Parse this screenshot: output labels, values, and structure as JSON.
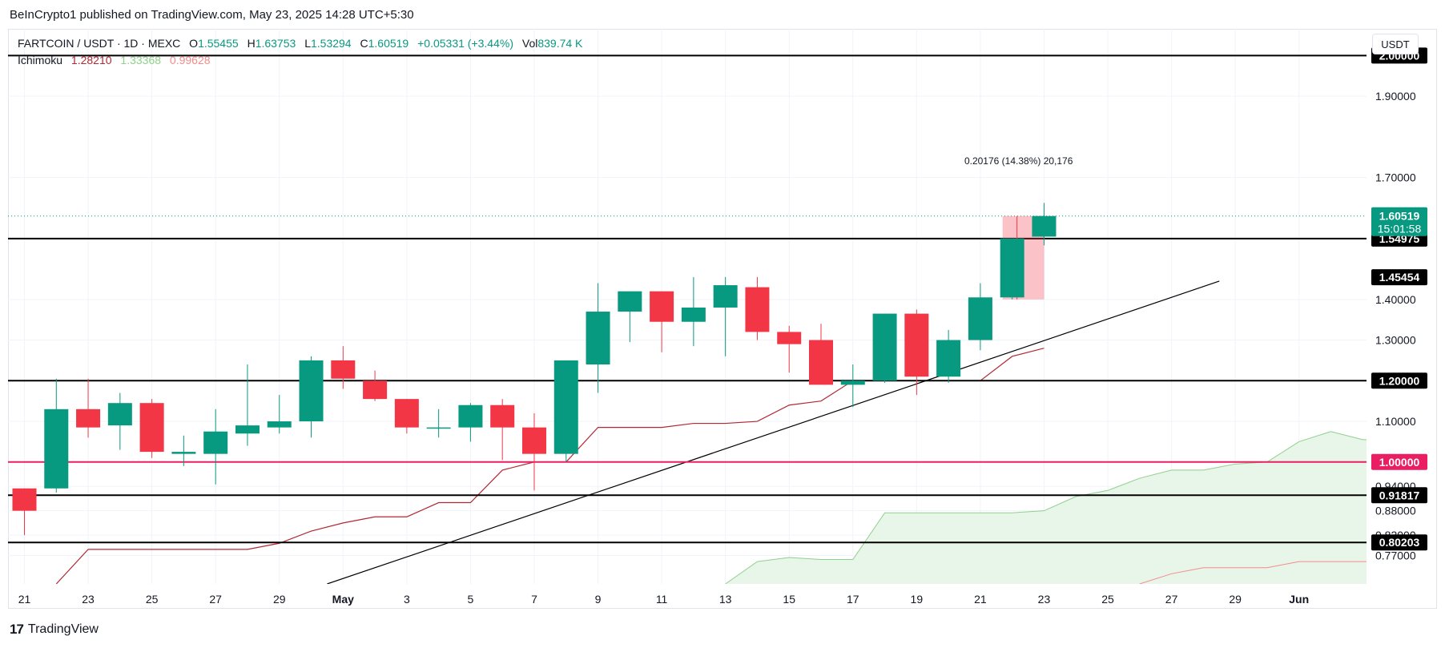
{
  "header": {
    "publish_line": "BeInCrypto1 published on TradingView.com, May 23, 2025 14:28 UTC+5:30"
  },
  "legend": {
    "symbol": "FARTCOIN / USDT · 1D · MEXC",
    "o_label": "O",
    "o_value": "1.55455",
    "h_label": "H",
    "h_value": "1.63753",
    "l_label": "L",
    "l_value": "1.53294",
    "c_label": "C",
    "c_value": "1.60519",
    "change": "+0.05331 (+3.44%)",
    "vol_label": "Vol",
    "vol_value": "839.74 K",
    "ichimoku_label": "Ichimoku",
    "ichimoku_values": [
      "1.28210",
      "1.33368",
      "0.99628"
    ]
  },
  "currency_button": "USDT",
  "footer": {
    "brand": "TradingView",
    "logo_glyph": "17"
  },
  "colors": {
    "up": "#089981",
    "down": "#f23645",
    "baseline_red": "#b22833",
    "cloud_fill": "#e8f5e9",
    "cloud_edge": "#8fd08c",
    "lagging_red": "#f28c8c",
    "pink_level": "#e91e63"
  },
  "chart_data": {
    "type": "candlestick",
    "y_range": [
      0.7,
      2.05
    ],
    "y_ticks": [
      "0.77000",
      "0.82000",
      "0.88000",
      "0.94000",
      "1.10000",
      "1.30000",
      "1.40000",
      "1.70000",
      "1.90000"
    ],
    "x_ticks": [
      "21",
      "23",
      "25",
      "27",
      "29",
      "May",
      "3",
      "5",
      "7",
      "9",
      "11",
      "13",
      "15",
      "17",
      "19",
      "21",
      "23",
      "25",
      "27",
      "29",
      "Jun"
    ],
    "candles": [
      {
        "o": 0.935,
        "h": 0.935,
        "l": 0.82,
        "c": 0.88
      },
      {
        "o": 0.935,
        "h": 1.205,
        "l": 0.925,
        "c": 1.13
      },
      {
        "o": 1.13,
        "h": 1.205,
        "l": 1.06,
        "c": 1.085
      },
      {
        "o": 1.09,
        "h": 1.17,
        "l": 1.03,
        "c": 1.145
      },
      {
        "o": 1.145,
        "h": 1.155,
        "l": 1.01,
        "c": 1.025
      },
      {
        "o": 1.02,
        "h": 1.065,
        "l": 0.99,
        "c": 1.025
      },
      {
        "o": 1.02,
        "h": 1.13,
        "l": 0.945,
        "c": 1.075
      },
      {
        "o": 1.07,
        "h": 1.24,
        "l": 1.04,
        "c": 1.09
      },
      {
        "o": 1.085,
        "h": 1.165,
        "l": 1.07,
        "c": 1.1
      },
      {
        "o": 1.1,
        "h": 1.26,
        "l": 1.06,
        "c": 1.25
      },
      {
        "o": 1.25,
        "h": 1.285,
        "l": 1.18,
        "c": 1.205
      },
      {
        "o": 1.2,
        "h": 1.225,
        "l": 1.15,
        "c": 1.155
      },
      {
        "o": 1.155,
        "h": 1.155,
        "l": 1.07,
        "c": 1.085
      },
      {
        "o": 1.085,
        "h": 1.13,
        "l": 1.06,
        "c": 1.085
      },
      {
        "o": 1.085,
        "h": 1.145,
        "l": 1.05,
        "c": 1.14
      },
      {
        "o": 1.14,
        "h": 1.155,
        "l": 1.005,
        "c": 1.085
      },
      {
        "o": 1.085,
        "h": 1.12,
        "l": 0.93,
        "c": 1.02
      },
      {
        "o": 1.02,
        "h": 1.25,
        "l": 1.0,
        "c": 1.25
      },
      {
        "o": 1.24,
        "h": 1.44,
        "l": 1.17,
        "c": 1.37
      },
      {
        "o": 1.37,
        "h": 1.415,
        "l": 1.295,
        "c": 1.42
      },
      {
        "o": 1.42,
        "h": 1.42,
        "l": 1.27,
        "c": 1.345
      },
      {
        "o": 1.345,
        "h": 1.455,
        "l": 1.285,
        "c": 1.38
      },
      {
        "o": 1.38,
        "h": 1.455,
        "l": 1.26,
        "c": 1.435
      },
      {
        "o": 1.43,
        "h": 1.455,
        "l": 1.3,
        "c": 1.32
      },
      {
        "o": 1.32,
        "h": 1.335,
        "l": 1.22,
        "c": 1.29
      },
      {
        "o": 1.3,
        "h": 1.34,
        "l": 1.2,
        "c": 1.19
      },
      {
        "o": 1.19,
        "h": 1.24,
        "l": 1.135,
        "c": 1.2
      },
      {
        "o": 1.2,
        "h": 1.365,
        "l": 1.195,
        "c": 1.365
      },
      {
        "o": 1.365,
        "h": 1.375,
        "l": 1.165,
        "c": 1.21
      },
      {
        "o": 1.21,
        "h": 1.325,
        "l": 1.195,
        "c": 1.3
      },
      {
        "o": 1.3,
        "h": 1.44,
        "l": 1.275,
        "c": 1.405
      },
      {
        "o": 1.405,
        "h": 1.54,
        "l": 1.4,
        "c": 1.55
      },
      {
        "o": 1.55455,
        "h": 1.63753,
        "l": 1.53294,
        "c": 1.60519
      }
    ],
    "levels": [
      {
        "value": 2.0,
        "label": "2.00000",
        "color": "#000000"
      },
      {
        "value": 1.54975,
        "label": "1.54975",
        "color": "#000000"
      },
      {
        "value": 1.45454,
        "label": "1.45454",
        "color": "#000000",
        "label_only": true
      },
      {
        "value": 1.2,
        "label": "1.20000",
        "color": "#000000"
      },
      {
        "value": 1.0,
        "label": "1.00000",
        "color": "#e91e63"
      },
      {
        "value": 0.91817,
        "label": "0.91817",
        "color": "#000000"
      },
      {
        "value": 0.80203,
        "label": "0.80203",
        "color": "#000000"
      }
    ],
    "last_price": "1.60519",
    "countdown": "15:01:58",
    "measure_label": "0.20176 (14.38%) 20,176",
    "baseline": [
      [
        1,
        0.7
      ],
      [
        2,
        0.785
      ],
      [
        3,
        0.785
      ],
      [
        4,
        0.785
      ],
      [
        5,
        0.785
      ],
      [
        6,
        0.785
      ],
      [
        7,
        0.785
      ],
      [
        8,
        0.8
      ],
      [
        9,
        0.83
      ],
      [
        10,
        0.85
      ],
      [
        11,
        0.865
      ],
      [
        12,
        0.865
      ],
      [
        13,
        0.9
      ],
      [
        14,
        0.9
      ],
      [
        15,
        0.98
      ],
      [
        16,
        1.0
      ],
      [
        17,
        1.0
      ],
      [
        18,
        1.085
      ],
      [
        19,
        1.085
      ],
      [
        20,
        1.085
      ],
      [
        21,
        1.095
      ],
      [
        22,
        1.095
      ],
      [
        23,
        1.1
      ],
      [
        24,
        1.14
      ],
      [
        25,
        1.15
      ],
      [
        26,
        1.2
      ],
      [
        27,
        1.2
      ],
      [
        28,
        1.2
      ],
      [
        29,
        1.2
      ],
      [
        30,
        1.2
      ],
      [
        31,
        1.26
      ],
      [
        32,
        1.28
      ]
    ],
    "cloud_top": [
      [
        22,
        0.7
      ],
      [
        23,
        0.755
      ],
      [
        24,
        0.765
      ],
      [
        25,
        0.76
      ],
      [
        26,
        0.76
      ],
      [
        27,
        0.875
      ],
      [
        28,
        0.875
      ],
      [
        29,
        0.875
      ],
      [
        30,
        0.875
      ],
      [
        31,
        0.875
      ],
      [
        32,
        0.88
      ],
      [
        33,
        0.915
      ],
      [
        34,
        0.93
      ],
      [
        35,
        0.96
      ],
      [
        36,
        0.98
      ],
      [
        37,
        0.98
      ],
      [
        38,
        0.995
      ],
      [
        39,
        1.0
      ],
      [
        40,
        1.05
      ],
      [
        41,
        1.075
      ],
      [
        42,
        1.055
      ],
      [
        43,
        1.055
      ],
      [
        43.3,
        1.075
      ]
    ],
    "cloud_bottom_red": [
      [
        35,
        0.7
      ],
      [
        36,
        0.725
      ],
      [
        37,
        0.74
      ],
      [
        38,
        0.74
      ],
      [
        39,
        0.74
      ],
      [
        40,
        0.755
      ],
      [
        41,
        0.755
      ],
      [
        42,
        0.755
      ],
      [
        43,
        0.755
      ],
      [
        43.3,
        0.775
      ]
    ],
    "trendline": [
      [
        9.5,
        0.7
      ],
      [
        37.5,
        1.445
      ]
    ]
  }
}
